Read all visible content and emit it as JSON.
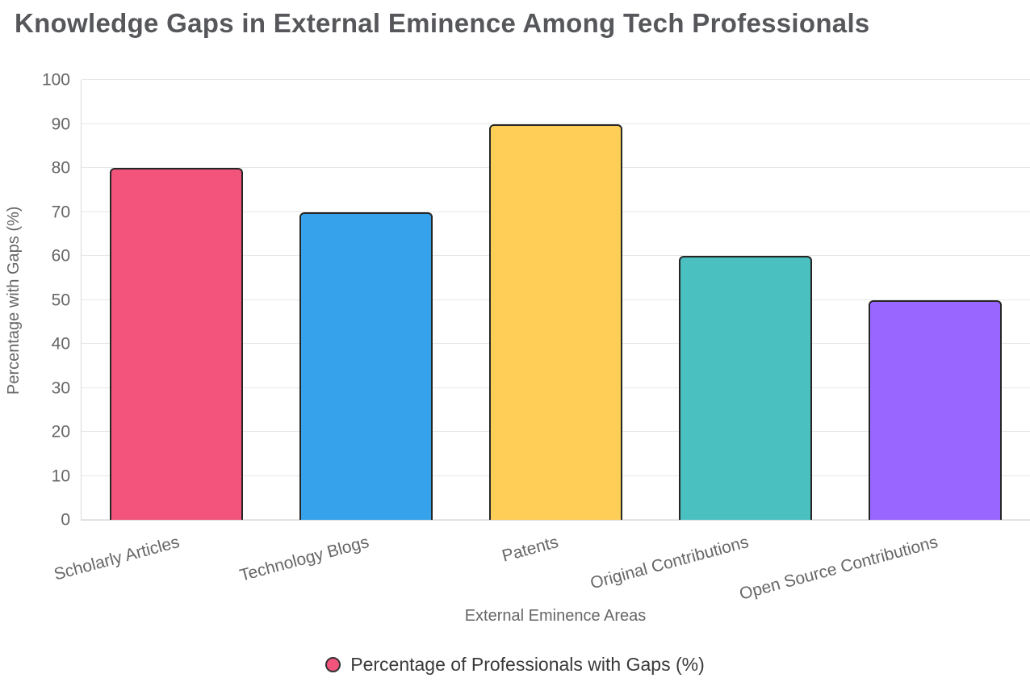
{
  "title": "Knowledge Gaps in External Eminence Among Tech Professionals",
  "chart_data": {
    "type": "bar",
    "title": "Knowledge Gaps in External Eminence Among Tech Professionals",
    "categories": [
      "Scholarly Articles",
      "Technology Blogs",
      "Patents",
      "Original Contributions",
      "Open Source Contributions"
    ],
    "values": [
      80,
      70,
      90,
      60,
      50
    ],
    "bar_colors": [
      "#f2547c",
      "#36a2eb",
      "#ffce56",
      "#4bc0c0",
      "#9966ff"
    ],
    "bar_border_color": "#262626",
    "xlabel": "External Eminence Areas",
    "ylabel": "Percentage with Gaps (%)",
    "ylim": [
      0,
      100
    ],
    "ytick_step": 10,
    "yticks": [
      0,
      10,
      20,
      30,
      40,
      50,
      60,
      70,
      80,
      90,
      100
    ],
    "grid": true,
    "legend": {
      "label": "Percentage of Professionals with Gaps (%)",
      "marker_color": "#f2547c",
      "position": "bottom"
    }
  }
}
